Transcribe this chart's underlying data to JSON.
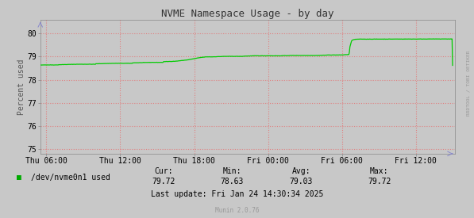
{
  "title": "NVME Namespace Usage - by day",
  "ylabel": "Percent used",
  "background_color": "#c8c8c8",
  "plot_bg_color": "#c8c8c8",
  "grid_color": "#e08080",
  "line_color": "#00cc00",
  "ylim_bottom": 74.8,
  "ylim_top": 80.6,
  "yticks": [
    75,
    76,
    77,
    78,
    79,
    80
  ],
  "xtick_positions": [
    6,
    12,
    18,
    24,
    30,
    36
  ],
  "xtick_labels": [
    "Thu 06:00",
    "Thu 12:00",
    "Thu 18:00",
    "Fri 00:00",
    "Fri 06:00",
    "Fri 12:00"
  ],
  "legend_label": "/dev/nvme0n1 used",
  "legend_color": "#00aa00",
  "cur_label": "Cur:",
  "cur_val": "79.72",
  "min_label": "Min:",
  "min_val": "78.63",
  "avg_label": "Avg:",
  "avg_val": "79.03",
  "max_label": "Max:",
  "max_val": "79.72",
  "last_update": "Last update: Fri Jan 24 14:30:34 2025",
  "munin_version": "Munin 2.0.76",
  "rrdtool_label": "RRDTOOL / TOBI OETIKER",
  "title_fontsize": 9,
  "axis_fontsize": 7,
  "annotation_fontsize": 7,
  "ylabel_fontsize": 7
}
